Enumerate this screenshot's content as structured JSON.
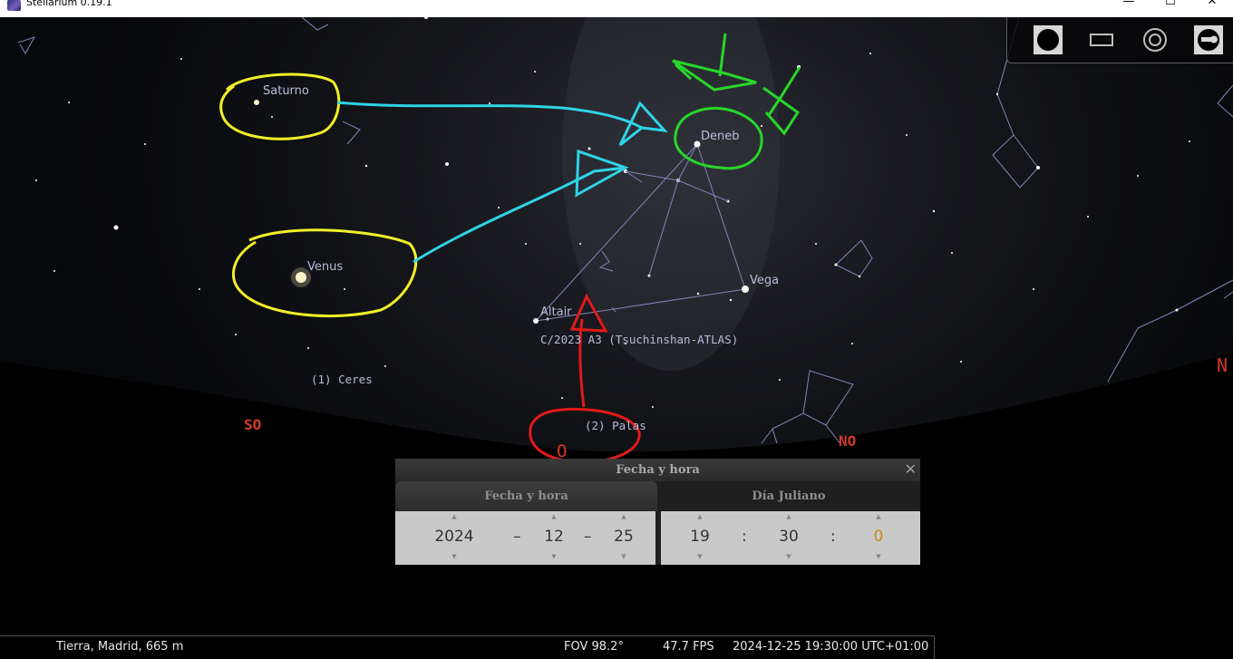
{
  "window": {
    "title": "Stellarium 0.19.1",
    "minimize": "—",
    "maximize": "☐",
    "close": "✕"
  },
  "toolbar": {
    "buttons": [
      {
        "name": "full-disk-icon"
      },
      {
        "name": "screen-rect-icon"
      },
      {
        "name": "target-circle-icon"
      },
      {
        "name": "telescope-control-icon"
      }
    ]
  },
  "sky_labels": {
    "saturno": "Saturno",
    "venus": "Venus",
    "deneb": "Deneb",
    "vega": "Vega",
    "altair": "Altair",
    "comet": "C/2023 A3 (Tsuchinshan-ATLAS)",
    "ceres": "(1) Ceres",
    "palas": "(2) Palas"
  },
  "cardinals": {
    "so": "SO",
    "o": "O",
    "no": "NO",
    "n": "N"
  },
  "annotation_colors": {
    "yellow": "#f2ee2a",
    "cyan": "#2fd3e6",
    "green": "#27d62a",
    "red": "#e01a1a"
  },
  "dialog": {
    "title": "Fecha y hora",
    "close": "✕",
    "tabs": [
      "Fecha y hora",
      "Día Juliano"
    ],
    "date": {
      "year": "2024",
      "month": "12",
      "day": "25",
      "sep": "–"
    },
    "time": {
      "hour": "19",
      "minute": "30",
      "second": "0",
      "sep": ":"
    }
  },
  "status": {
    "location": "Tierra, Madrid, 665 m",
    "fov": "FOV 98.2°",
    "fps": "47.7 FPS",
    "datetime": "2024-12-25 19:30:00 UTC+01:00"
  }
}
